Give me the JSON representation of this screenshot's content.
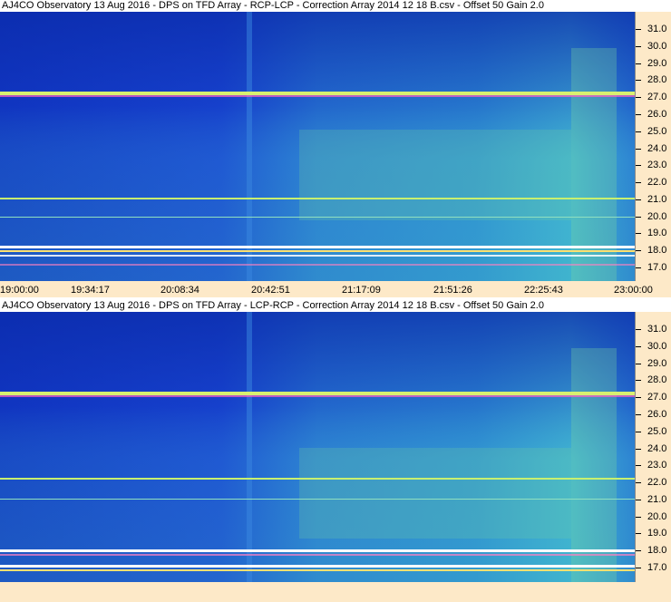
{
  "panels": [
    {
      "title": "AJ4CO Observatory 13 Aug 2016  -  DPS on TFD Array  -  RCP-LCP  -  Correction Array 2014 12 18 B.csv  -  Offset 50  Gain 2.0",
      "frequency_labels": [
        "31.0",
        "30.0",
        "29.0",
        "28.0",
        "27.0",
        "26.0",
        "25.0",
        "24.0",
        "23.0",
        "22.0",
        "21.0",
        "20.0",
        "19.0",
        "18.0",
        "17.0"
      ]
    },
    {
      "title": "AJ4CO Observatory 13 Aug 2016  -  DPS on TFD Array  -  LCP-RCP  -  Correction Array 2014 12 18 B.csv  -  Offset 50  Gain 2.0",
      "frequency_labels": [
        "31.0",
        "30.0",
        "29.0",
        "28.0",
        "27.0",
        "26.0",
        "25.0",
        "24.0",
        "23.0",
        "22.0",
        "21.0",
        "20.0",
        "19.0",
        "18.0",
        "17.0"
      ]
    }
  ],
  "time_labels": [
    "19:00:00",
    "19:34:17",
    "20:08:34",
    "20:42:51",
    "21:17:09",
    "21:51:26",
    "22:25:43",
    "23:00:00"
  ],
  "colors": {
    "background_blue": "#1a3fd0",
    "deep_blue": "#0a2aa8",
    "cyan": "#3fa8e0",
    "green_yellow": "#b8e05a",
    "scale_background": "#fde9c8"
  }
}
